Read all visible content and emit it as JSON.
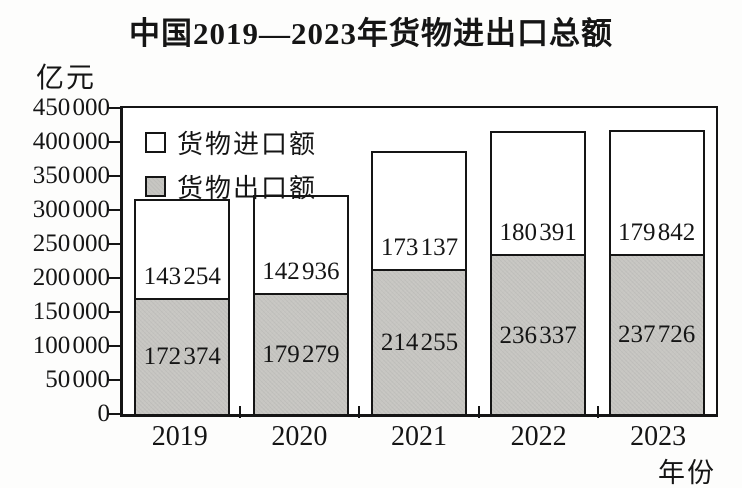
{
  "title": "中国2019—2023年货物进出口总额",
  "y_axis": {
    "unit_label": "亿元",
    "tick_labels": [
      "450 000",
      "400 000",
      "350 000",
      "300 000",
      "250 000",
      "200 000",
      "150 000",
      "100 000",
      "50 000",
      "0"
    ]
  },
  "x_axis": {
    "unit_label": "年份"
  },
  "legend": {
    "import_label": "货物进口额",
    "export_label": "货物出口额"
  },
  "colors": {
    "line": "#151515",
    "import_fill": "#ffffff",
    "export_fill": "#c7c6c2"
  },
  "chart_data": {
    "type": "bar",
    "stacked": true,
    "title": "中国2019—2023年货物进出口总额",
    "xlabel": "年份",
    "ylabel": "亿元",
    "categories": [
      "2019",
      "2020",
      "2021",
      "2022",
      "2023"
    ],
    "series": [
      {
        "name": "货物进口额",
        "values": [
          143254,
          142936,
          173137,
          180391,
          179842
        ],
        "display_values": [
          "143 254",
          "142 936",
          "173 137",
          "180 391",
          "179 842"
        ]
      },
      {
        "name": "货物出口额",
        "values": [
          172374,
          179279,
          214255,
          236337,
          237726
        ],
        "display_values": [
          "172 374",
          "179 279",
          "214 255",
          "236 337",
          "237 726"
        ]
      }
    ],
    "ylim": [
      0,
      450000
    ],
    "y_tick_step": 50000,
    "grid": false,
    "legend_position": "inside-top-left"
  }
}
